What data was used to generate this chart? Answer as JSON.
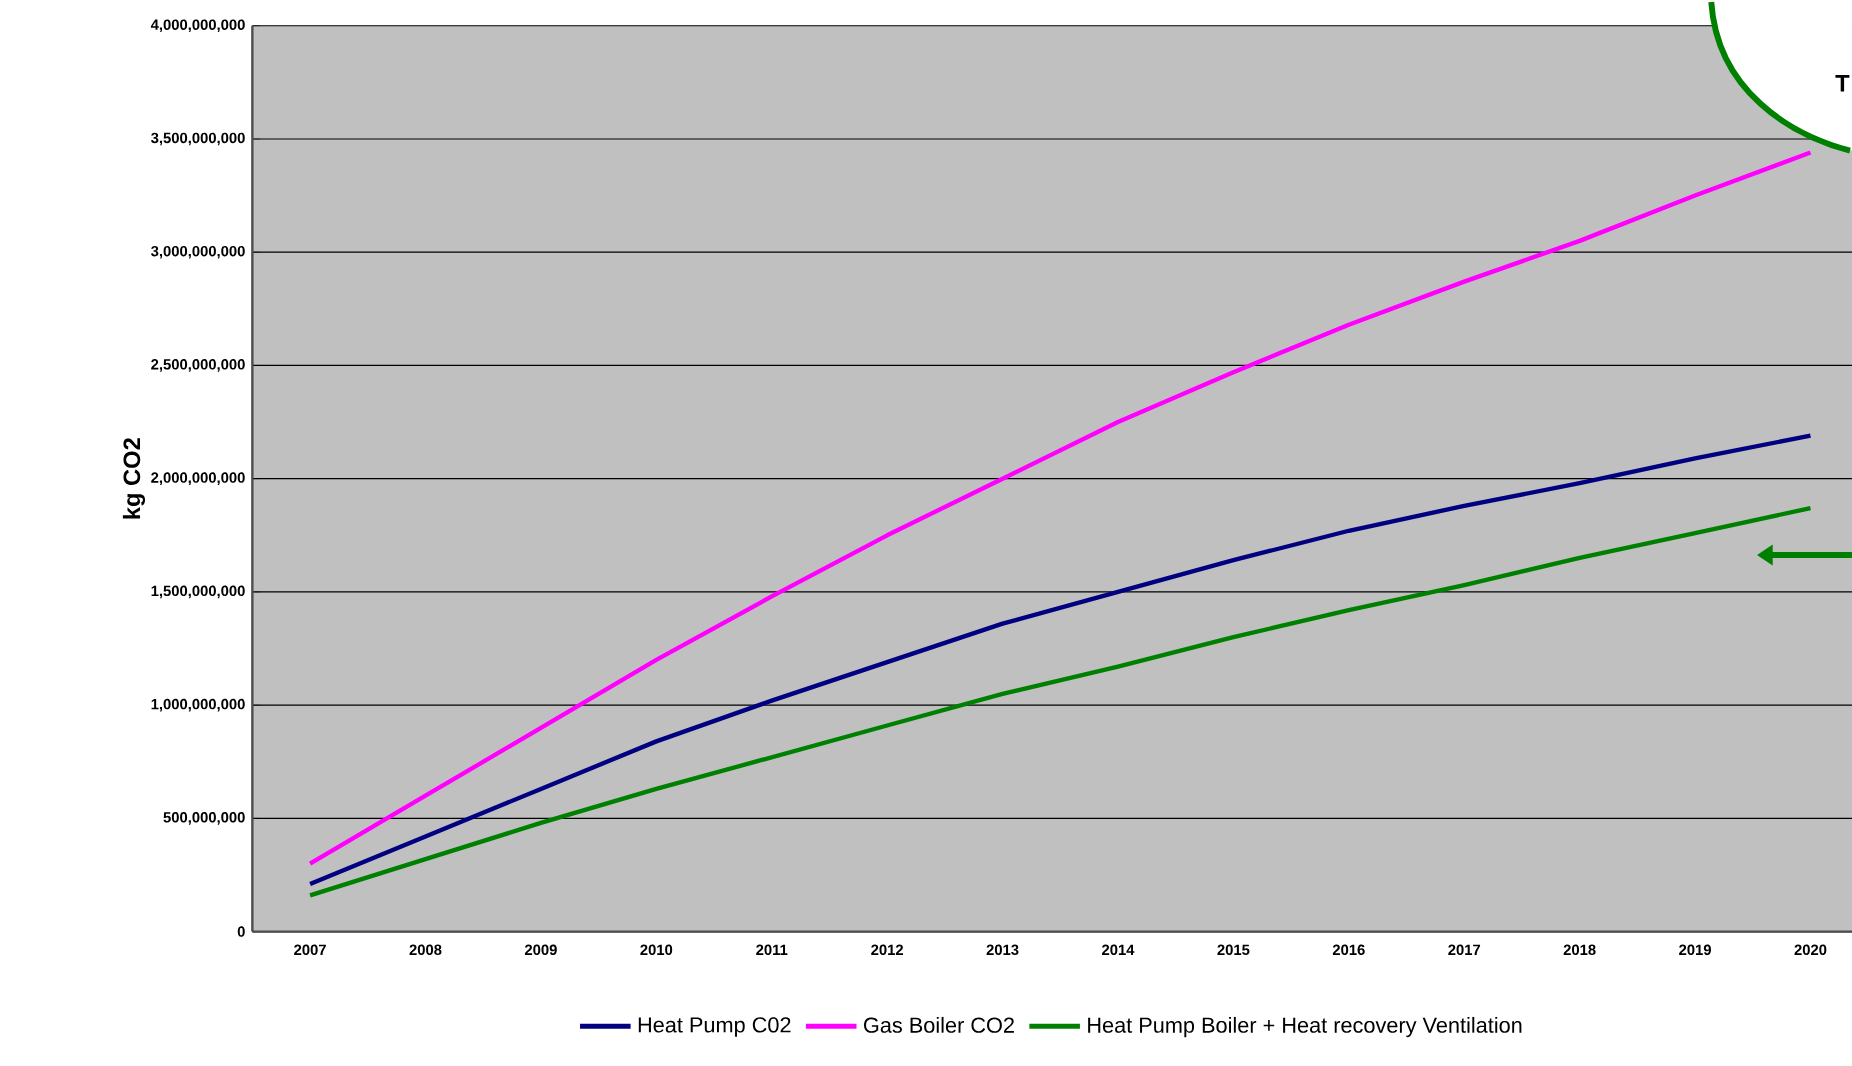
{
  "chart_data": {
    "type": "line",
    "ylabel": "kg CO2",
    "categories": [
      "2007",
      "2008",
      "2009",
      "2010",
      "2011",
      "2012",
      "2013",
      "2014",
      "2015",
      "2016",
      "2017",
      "2018",
      "2019",
      "2020"
    ],
    "series": [
      {
        "name": "Heat Pump C02",
        "color": "#000080",
        "values": [
          210000000,
          420000000,
          630000000,
          840000000,
          1020000000,
          1190000000,
          1360000000,
          1500000000,
          1640000000,
          1770000000,
          1880000000,
          1980000000,
          2090000000,
          2190000000
        ]
      },
      {
        "name": "Gas Boiler CO2",
        "color": "#ff00ff",
        "values": [
          300000000,
          600000000,
          900000000,
          1200000000,
          1480000000,
          1750000000,
          2000000000,
          2250000000,
          2470000000,
          2680000000,
          2870000000,
          3050000000,
          3250000000,
          3440000000
        ]
      },
      {
        "name": "Heat Pump Boiler + Heat recovery Ventilation",
        "color": "#008000",
        "values": [
          160000000,
          320000000,
          480000000,
          630000000,
          770000000,
          910000000,
          1050000000,
          1170000000,
          1300000000,
          1420000000,
          1530000000,
          1650000000,
          1760000000,
          1870000000
        ]
      }
    ],
    "ylim": [
      0,
      4000000000
    ],
    "yticks": [
      0,
      {
        "value": 500000000,
        "label": "500,000,000"
      },
      {
        "value": 1000000000,
        "label": "1,000,000,000"
      },
      {
        "value": 1500000000,
        "label": "1,500,000,000"
      },
      {
        "value": 2000000000,
        "label": "2,000,000,000"
      },
      {
        "value": 2500000000,
        "label": "2,500,000,000"
      },
      {
        "value": 3000000000,
        "label": "3,000,000,000"
      },
      {
        "value": 3500000000,
        "label": "3,500,000,000"
      },
      {
        "value": 4000000000,
        "label": "4,000,000,000"
      }
    ],
    "grid": "y",
    "legend": "bottom",
    "annotations": [
      "T"
    ]
  }
}
